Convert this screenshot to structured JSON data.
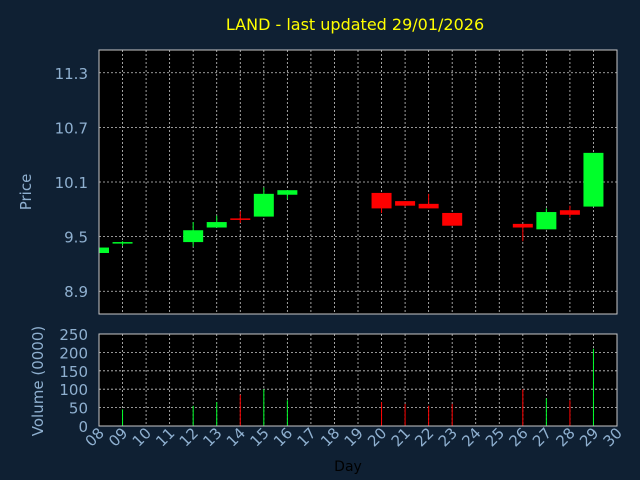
{
  "colors": {
    "background": "#0f2033",
    "plot_background": "#000000",
    "title": "#ffff00",
    "axis_text": "#8fb0d0",
    "label_text": "#8fb0d0",
    "xlabel_text": "#000000",
    "grid": "#c8c8c8",
    "up": "#00ff2a",
    "down": "#ff0000"
  },
  "chart_data": [
    {
      "type": "candlestick",
      "title": "LAND - last updated 29/01/2026",
      "ylabel": "Price",
      "ylim": [
        8.65,
        11.55
      ],
      "yticks": [
        8.9,
        9.5,
        10.1,
        10.7,
        11.3
      ],
      "ytick_labels": [
        "8.9",
        "9.5",
        "10.1",
        "10.7",
        "11.3"
      ],
      "grid": true,
      "xlim": [
        8,
        30
      ],
      "candles": [
        {
          "day": 8,
          "open": 9.32,
          "close": 9.38,
          "high": 9.38,
          "low": 9.31
        },
        {
          "day": 9,
          "open": 9.43,
          "close": 9.44,
          "high": 9.45,
          "low": 9.4
        },
        {
          "day": 12,
          "open": 9.44,
          "close": 9.57,
          "high": 9.66,
          "low": 9.39
        },
        {
          "day": 13,
          "open": 9.6,
          "close": 9.66,
          "high": 9.73,
          "low": 9.6
        },
        {
          "day": 14,
          "open": 9.7,
          "close": 9.69,
          "high": 9.78,
          "low": 9.65
        },
        {
          "day": 15,
          "open": 9.72,
          "close": 9.97,
          "high": 10.04,
          "low": 9.72
        },
        {
          "day": 16,
          "open": 9.96,
          "close": 10.01,
          "high": 10.01,
          "low": 9.91
        },
        {
          "day": 20,
          "open": 9.98,
          "close": 9.81,
          "high": 9.98,
          "low": 9.76
        },
        {
          "day": 21,
          "open": 9.89,
          "close": 9.84,
          "high": 9.89,
          "low": 9.83
        },
        {
          "day": 22,
          "open": 9.86,
          "close": 9.81,
          "high": 9.97,
          "low": 9.81
        },
        {
          "day": 23,
          "open": 9.76,
          "close": 9.62,
          "high": 9.76,
          "low": 9.62
        },
        {
          "day": 26,
          "open": 9.64,
          "close": 9.6,
          "high": 9.64,
          "low": 9.45
        },
        {
          "day": 27,
          "open": 9.58,
          "close": 9.77,
          "high": 9.81,
          "low": 9.58
        },
        {
          "day": 28,
          "open": 9.79,
          "close": 9.74,
          "high": 9.84,
          "low": 9.71
        },
        {
          "day": 29,
          "open": 9.83,
          "close": 10.42,
          "high": 10.42,
          "low": 9.83
        }
      ]
    },
    {
      "type": "bar",
      "ylabel": "Volume (0000)",
      "xlabel": "Day",
      "ylim": [
        0,
        250
      ],
      "yticks": [
        0,
        50,
        100,
        150,
        200,
        250
      ],
      "ytick_labels": [
        "0",
        "50",
        "100",
        "150",
        "200",
        "250"
      ],
      "xlim": [
        8,
        30
      ],
      "categories": [
        "08",
        "09",
        "10",
        "11",
        "12",
        "13",
        "14",
        "15",
        "16",
        "17",
        "18",
        "19",
        "20",
        "21",
        "22",
        "23",
        "24",
        "25",
        "26",
        "27",
        "28",
        "29",
        "30"
      ],
      "bars": [
        {
          "day": 9,
          "volume": 45,
          "direction": "up"
        },
        {
          "day": 12,
          "volume": 55,
          "direction": "up"
        },
        {
          "day": 13,
          "volume": 65,
          "direction": "up"
        },
        {
          "day": 14,
          "volume": 85,
          "direction": "down"
        },
        {
          "day": 15,
          "volume": 100,
          "direction": "up"
        },
        {
          "day": 16,
          "volume": 70,
          "direction": "up"
        },
        {
          "day": 20,
          "volume": 65,
          "direction": "down"
        },
        {
          "day": 21,
          "volume": 60,
          "direction": "down"
        },
        {
          "day": 22,
          "volume": 55,
          "direction": "down"
        },
        {
          "day": 23,
          "volume": 60,
          "direction": "down"
        },
        {
          "day": 26,
          "volume": 100,
          "direction": "down"
        },
        {
          "day": 27,
          "volume": 75,
          "direction": "up"
        },
        {
          "day": 28,
          "volume": 70,
          "direction": "down"
        },
        {
          "day": 29,
          "volume": 210,
          "direction": "up"
        }
      ]
    }
  ]
}
